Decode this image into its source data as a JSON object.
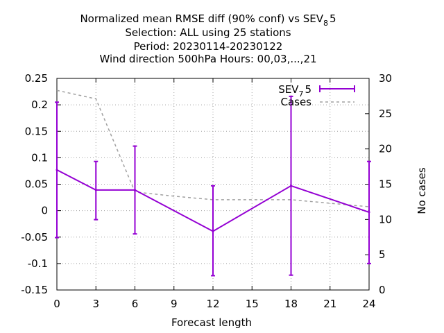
{
  "chart_data": {
    "type": "line",
    "title_lines": [
      "Normalized mean RMSE diff (90% conf) vs SEV",
      "Selection: ALL using    25 stations",
      "Period: 20230114-20230122",
      "Wind direction 500hPa   Hours:  00,03,...,21"
    ],
    "title_ref": {
      "base": "SEV",
      "sub": "8",
      "suffix": "5"
    },
    "xlabel": "Forecast length",
    "ylabel": "",
    "y2label": "No cases",
    "xlim": [
      0,
      24
    ],
    "ylim": [
      -0.15,
      0.25
    ],
    "y2lim": [
      0,
      30
    ],
    "x_ticks": [
      "0",
      "3",
      "6",
      "9",
      "12",
      "15",
      "18",
      "21",
      "24"
    ],
    "y_ticks": [
      "0.25",
      "0.2",
      "0.15",
      "0.1",
      "0.05",
      "0",
      "-0.05",
      "-0.1",
      "-0.15"
    ],
    "y2_ticks": [
      "30",
      "25",
      "20",
      "15",
      "10",
      "5",
      "0"
    ],
    "grid": true,
    "legend_position": "top-right",
    "series": [
      {
        "legend": {
          "base": "SEV",
          "sub": "7",
          "suffix": "5"
        },
        "axis": "y",
        "style": "line-errorbars",
        "color": "#9400d3",
        "x": [
          0,
          3,
          6,
          12,
          18,
          24
        ],
        "y": [
          0.077,
          0.039,
          0.039,
          -0.039,
          0.047,
          -0.003
        ],
        "err_low": [
          -0.051,
          -0.017,
          -0.044,
          -0.123,
          -0.122,
          -0.1
        ],
        "err_high": [
          0.205,
          0.093,
          0.122,
          0.047,
          0.216,
          0.093
        ]
      },
      {
        "name": "Cases",
        "axis": "y2",
        "style": "dashed",
        "color": "#a0a0a0",
        "x": [
          0,
          3,
          6,
          9,
          12,
          15,
          18,
          21,
          24
        ],
        "y": [
          28.3,
          27.1,
          13.9,
          13.3,
          12.8,
          12.8,
          12.8,
          12.3,
          11.8
        ]
      }
    ]
  }
}
